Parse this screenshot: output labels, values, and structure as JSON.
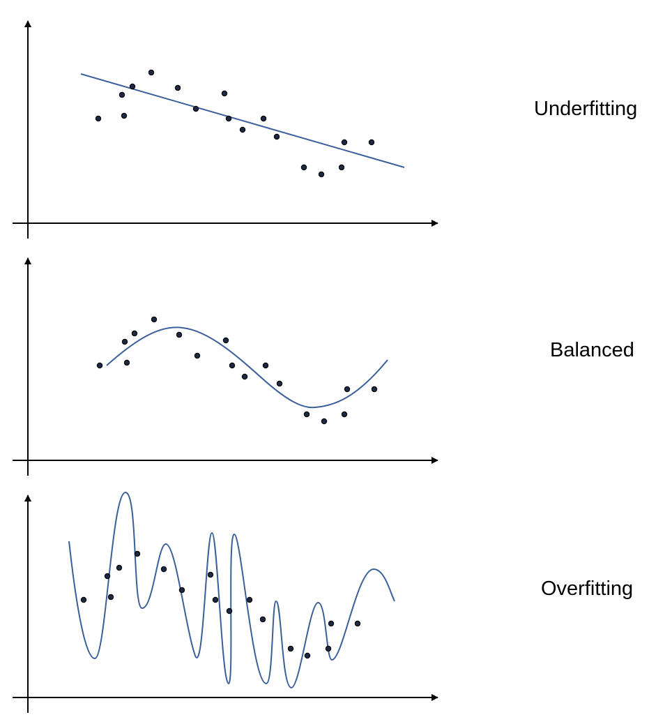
{
  "colors": {
    "axis": "#000000",
    "curve": "#3b5f9a",
    "point_fill": "#1d2a45",
    "point_stroke": "#000000"
  },
  "panels": [
    {
      "label": "Underfitting",
      "fit": "line",
      "points": [
        [
          141,
          170
        ],
        [
          178,
          166
        ],
        [
          175,
          136
        ],
        [
          190,
          124
        ],
        [
          217,
          104
        ],
        [
          255,
          126
        ],
        [
          281,
          156
        ],
        [
          322,
          134
        ],
        [
          328,
          170
        ],
        [
          348,
          186
        ],
        [
          378,
          170
        ],
        [
          397,
          196
        ],
        [
          436,
          240
        ],
        [
          461,
          250
        ],
        [
          490,
          240
        ],
        [
          494,
          204
        ],
        [
          533,
          204
        ]
      ]
    },
    {
      "label": "Balanced",
      "fit": "smooth",
      "points": [
        [
          143,
          524
        ],
        [
          182,
          520
        ],
        [
          179,
          490
        ],
        [
          193,
          478
        ],
        [
          221,
          458
        ],
        [
          257,
          480
        ],
        [
          283,
          510
        ],
        [
          324,
          488
        ],
        [
          333,
          524
        ],
        [
          351,
          540
        ],
        [
          381,
          524
        ],
        [
          401,
          550
        ],
        [
          440,
          594
        ],
        [
          465,
          604
        ],
        [
          494,
          594
        ],
        [
          498,
          558
        ],
        [
          537,
          558
        ]
      ]
    },
    {
      "label": "Overfitting",
      "fit": "wiggly",
      "points": [
        [
          120,
          860
        ],
        [
          159,
          856
        ],
        [
          154,
          826
        ],
        [
          171,
          814
        ],
        [
          197,
          794
        ],
        [
          235,
          816
        ],
        [
          261,
          846
        ],
        [
          302,
          824
        ],
        [
          309,
          860
        ],
        [
          329,
          876
        ],
        [
          358,
          860
        ],
        [
          377,
          888
        ],
        [
          417,
          930
        ],
        [
          441,
          940
        ],
        [
          471,
          930
        ],
        [
          475,
          894
        ],
        [
          513,
          894
        ]
      ]
    }
  ]
}
